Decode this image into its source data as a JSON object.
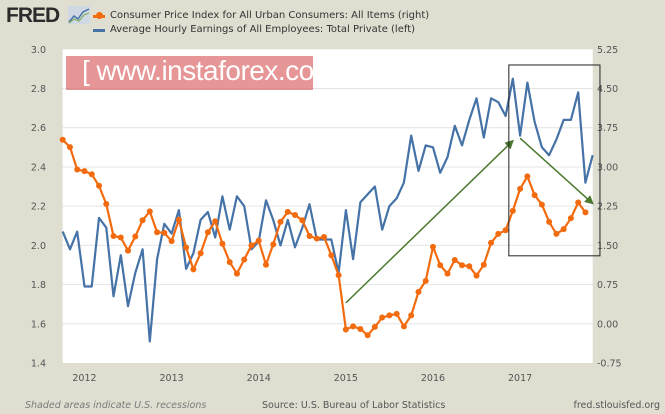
{
  "header": {
    "logo": "FRED",
    "logo_icon": "line-graph-icon"
  },
  "footer": {
    "recession_note": "Shaded areas indicate U.S. recessions",
    "source": "Source: U.S. Bureau of Labor Statistics",
    "site": "fred.stlouisfed.org"
  },
  "watermark": {
    "text": "[ www.instaforex.com ]"
  },
  "chart_data": {
    "type": "line",
    "title": "",
    "grid": true,
    "legend_placement": "top-left",
    "x_ticks": [
      "2012",
      "2013",
      "2014",
      "2015",
      "2016",
      "2017"
    ],
    "x_range": [
      "2011-10",
      "2017-11"
    ],
    "left_axis": {
      "ylim": [
        1.4,
        3.0
      ],
      "ticks": [
        "1.4",
        "1.6",
        "1.8",
        "2.0",
        "2.2",
        "2.4",
        "2.6",
        "2.8",
        "3.0"
      ]
    },
    "right_axis": {
      "ylim": [
        -0.75,
        5.25
      ],
      "ticks": [
        "-0.75",
        "0.00",
        "0.75",
        "1.50",
        "2.25",
        "3.00",
        "3.75",
        "4.50",
        "5.25"
      ]
    },
    "series": [
      {
        "name": "Consumer Price Index for All Urban Consumers: All Items (right)",
        "axis": "right",
        "color": "#f26b0f",
        "markers": true,
        "start": "2011-10",
        "dates": [
          "2011-10",
          "2011-11",
          "2011-12",
          "2012-01",
          "2012-02",
          "2012-03",
          "2012-04",
          "2012-05",
          "2012-06",
          "2012-07",
          "2012-08",
          "2012-09",
          "2012-10",
          "2012-11",
          "2012-12",
          "2013-01",
          "2013-02",
          "2013-03",
          "2013-04",
          "2013-05",
          "2013-06",
          "2013-07",
          "2013-08",
          "2013-09",
          "2013-10",
          "2013-11",
          "2013-12",
          "2014-01",
          "2014-02",
          "2014-03",
          "2014-04",
          "2014-05",
          "2014-06",
          "2014-07",
          "2014-08",
          "2014-09",
          "2014-10",
          "2014-11",
          "2014-12",
          "2015-01",
          "2015-02",
          "2015-03",
          "2015-04",
          "2015-05",
          "2015-06",
          "2015-07",
          "2015-08",
          "2015-09",
          "2015-10",
          "2015-11",
          "2015-12",
          "2016-01",
          "2016-02",
          "2016-03",
          "2016-04",
          "2016-05",
          "2016-06",
          "2016-07",
          "2016-08",
          "2016-09",
          "2016-10",
          "2016-11",
          "2016-12",
          "2017-01",
          "2017-02",
          "2017-03",
          "2017-04",
          "2017-05",
          "2017-06",
          "2017-07",
          "2017-08",
          "2017-09",
          "2017-10"
        ],
        "values": [
          3.52,
          3.38,
          2.95,
          2.92,
          2.86,
          2.64,
          2.29,
          1.68,
          1.65,
          1.4,
          1.67,
          1.98,
          2.15,
          1.75,
          1.74,
          1.58,
          1.99,
          1.46,
          1.04,
          1.35,
          1.75,
          1.96,
          1.53,
          1.18,
          0.96,
          1.23,
          1.5,
          1.59,
          1.13,
          1.52,
          1.95,
          2.14,
          2.08,
          1.98,
          1.68,
          1.63,
          1.66,
          1.31,
          0.93,
          -0.11,
          -0.05,
          -0.1,
          -0.22,
          -0.06,
          0.12,
          0.16,
          0.19,
          -0.05,
          0.16,
          0.61,
          0.82,
          1.47,
          1.12,
          0.96,
          1.22,
          1.12,
          1.1,
          0.92,
          1.13,
          1.55,
          1.72,
          1.79,
          2.16,
          2.58,
          2.82,
          2.46,
          2.28,
          1.95,
          1.72,
          1.81,
          2.02,
          2.32,
          2.13
        ]
      },
      {
        "name": "Average Hourly Earnings of All Employees: Total Private (left)",
        "axis": "left",
        "color": "#4572a7",
        "markers": false,
        "dates": [
          "2011-10",
          "2011-11",
          "2011-12",
          "2012-01",
          "2012-02",
          "2012-03",
          "2012-04",
          "2012-05",
          "2012-06",
          "2012-07",
          "2012-08",
          "2012-09",
          "2012-10",
          "2012-11",
          "2012-12",
          "2013-01",
          "2013-02",
          "2013-03",
          "2013-04",
          "2013-05",
          "2013-06",
          "2013-07",
          "2013-08",
          "2013-09",
          "2013-10",
          "2013-11",
          "2013-12",
          "2014-01",
          "2014-02",
          "2014-03",
          "2014-04",
          "2014-05",
          "2014-06",
          "2014-07",
          "2014-08",
          "2014-09",
          "2014-10",
          "2014-11",
          "2014-12",
          "2015-01",
          "2015-02",
          "2015-03",
          "2015-04",
          "2015-05",
          "2015-06",
          "2015-07",
          "2015-08",
          "2015-09",
          "2015-10",
          "2015-11",
          "2015-12",
          "2016-01",
          "2016-02",
          "2016-03",
          "2016-04",
          "2016-05",
          "2016-06",
          "2016-07",
          "2016-08",
          "2016-09",
          "2016-10",
          "2016-11",
          "2016-12",
          "2017-01",
          "2017-02",
          "2017-03",
          "2017-04",
          "2017-05",
          "2017-06",
          "2017-07",
          "2017-08",
          "2017-09",
          "2017-10",
          "2017-11"
        ],
        "values": [
          2.07,
          1.98,
          2.07,
          1.79,
          1.79,
          2.14,
          2.09,
          1.74,
          1.95,
          1.69,
          1.86,
          1.98,
          1.51,
          1.93,
          2.11,
          2.06,
          2.18,
          1.88,
          1.96,
          2.13,
          2.17,
          2.04,
          2.25,
          2.08,
          2.25,
          2.2,
          1.98,
          2.02,
          2.23,
          2.13,
          2.0,
          2.13,
          1.99,
          2.09,
          2.21,
          2.03,
          2.03,
          2.03,
          1.86,
          2.18,
          1.93,
          2.22,
          2.26,
          2.3,
          2.08,
          2.2,
          2.24,
          2.32,
          2.56,
          2.38,
          2.51,
          2.5,
          2.37,
          2.45,
          2.61,
          2.51,
          2.64,
          2.75,
          2.55,
          2.75,
          2.73,
          2.66,
          2.85,
          2.56,
          2.83,
          2.63,
          2.5,
          2.46,
          2.54,
          2.64,
          2.64,
          2.78,
          2.32,
          2.46
        ]
      }
    ],
    "annotations": [
      {
        "type": "arrow",
        "color": "#4a7a2e",
        "from": [
          "2015-01",
          0.4
        ],
        "to": [
          "2016-12",
          3.5
        ]
      },
      {
        "type": "arrow",
        "color": "#4a7a2e",
        "from": [
          "2017-01",
          3.55
        ],
        "to": [
          "2017-11",
          2.3
        ]
      },
      {
        "type": "box",
        "color": "#222222",
        "from": [
          "2016-12",
          4.95
        ],
        "to": [
          "2017-12",
          1.3
        ]
      }
    ]
  }
}
